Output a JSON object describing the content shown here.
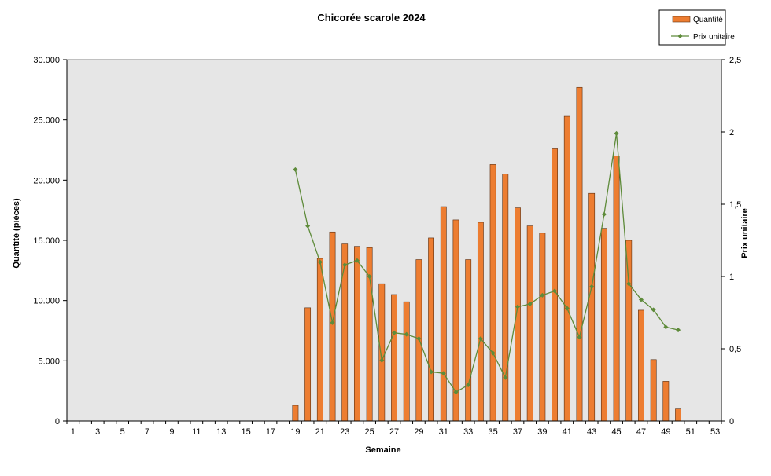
{
  "chart_data": {
    "type": "bar",
    "title": "Chicorée scarole 2024",
    "xlabel": "Semaine",
    "ylabel": "Quantité (pièces)",
    "ylabel_right": "Prix unitaire",
    "weeks": [
      1,
      2,
      3,
      4,
      5,
      6,
      7,
      8,
      9,
      10,
      11,
      12,
      13,
      14,
      15,
      16,
      17,
      18,
      19,
      20,
      21,
      22,
      23,
      24,
      25,
      26,
      27,
      28,
      29,
      30,
      31,
      32,
      33,
      34,
      35,
      36,
      37,
      38,
      39,
      40,
      41,
      42,
      43,
      44,
      45,
      46,
      47,
      48,
      49,
      50,
      51,
      52,
      53
    ],
    "x_tick_labels": [
      "1",
      "3",
      "5",
      "7",
      "9",
      "11",
      "13",
      "15",
      "17",
      "19",
      "21",
      "23",
      "25",
      "27",
      "29",
      "31",
      "33",
      "35",
      "37",
      "39",
      "41",
      "43",
      "45",
      "47",
      "49",
      "51",
      "53"
    ],
    "ylim": [
      0,
      30000
    ],
    "y_tick_labels": [
      "0",
      "5.000",
      "10.000",
      "15.000",
      "20.000",
      "25.000",
      "30.000"
    ],
    "y2lim": [
      0,
      2.5
    ],
    "y2_tick_labels": [
      "0",
      "0,5",
      "1",
      "1,5",
      "2",
      "2,5"
    ],
    "grid": false,
    "legend_position": "top-right",
    "series": [
      {
        "name": "Quantité",
        "kind": "bar",
        "axis": "left",
        "color": "#ED7D31",
        "values": [
          null,
          null,
          null,
          null,
          null,
          null,
          null,
          null,
          null,
          null,
          null,
          null,
          null,
          null,
          null,
          null,
          null,
          null,
          1300,
          9400,
          13500,
          15700,
          14700,
          14500,
          14400,
          11400,
          10500,
          9900,
          13400,
          15200,
          17800,
          16700,
          13400,
          16500,
          21300,
          20500,
          17700,
          16200,
          15600,
          22600,
          25300,
          27700,
          18900,
          16000,
          22000,
          15000,
          9200,
          5100,
          3300,
          1000,
          null,
          null,
          null
        ]
      },
      {
        "name": "Prix unitaire",
        "kind": "line",
        "axis": "right",
        "color": "#5E8B3A",
        "values": [
          null,
          null,
          null,
          null,
          null,
          null,
          null,
          null,
          null,
          null,
          null,
          null,
          null,
          null,
          null,
          null,
          null,
          null,
          1.74,
          1.35,
          1.1,
          0.68,
          1.08,
          1.11,
          1.0,
          0.42,
          0.61,
          0.6,
          0.57,
          0.34,
          0.33,
          0.2,
          0.25,
          0.57,
          0.47,
          0.3,
          0.79,
          0.81,
          0.87,
          0.9,
          0.78,
          0.58,
          0.93,
          1.43,
          1.99,
          0.95,
          0.84,
          0.77,
          0.65,
          0.63,
          null,
          null,
          null
        ]
      }
    ]
  }
}
